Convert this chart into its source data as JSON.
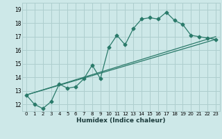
{
  "xlabel": "Humidex (Indice chaleur)",
  "ylabel": "",
  "background_color": "#cde8e8",
  "grid_color": "#aecece",
  "line_color": "#2a7a6a",
  "xlim_min": -0.5,
  "xlim_max": 23.5,
  "ylim_min": 11.5,
  "ylim_max": 19.5,
  "xticks": [
    0,
    1,
    2,
    3,
    4,
    5,
    6,
    7,
    8,
    9,
    10,
    11,
    12,
    13,
    14,
    15,
    16,
    17,
    18,
    19,
    20,
    21,
    22,
    23
  ],
  "yticks": [
    12,
    13,
    14,
    15,
    16,
    17,
    18,
    19
  ],
  "series1_x": [
    0,
    1,
    2,
    3,
    4,
    5,
    6,
    7,
    8,
    9,
    10,
    11,
    12,
    13,
    14,
    15,
    16,
    17,
    18,
    19,
    20,
    21,
    22,
    23
  ],
  "series1_y": [
    12.7,
    12.0,
    11.7,
    12.2,
    13.5,
    13.2,
    13.3,
    13.9,
    14.9,
    13.9,
    16.2,
    17.1,
    16.4,
    17.6,
    18.3,
    18.4,
    18.3,
    18.8,
    18.2,
    17.9,
    17.1,
    17.0,
    16.9,
    16.8
  ],
  "series2_x": [
    0,
    23
  ],
  "series2_y": [
    12.7,
    16.8
  ],
  "series3_x": [
    0,
    23
  ],
  "series3_y": [
    12.7,
    17.0
  ],
  "xlabel_fontsize": 6.5,
  "tick_fontsize": 5.0,
  "xlabel_color": "#1a3a3a",
  "marker_size": 2.5
}
